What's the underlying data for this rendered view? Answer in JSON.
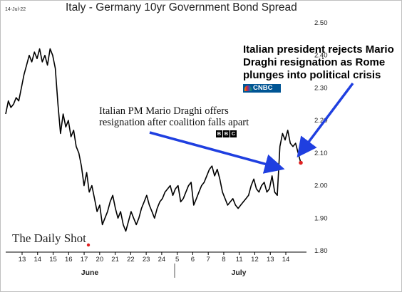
{
  "date_label": "14-Jul-22",
  "title": "Italy - Germany 10yr Government Bond Spread",
  "annotations": {
    "bbc_text": "Italian PM Mario Draghi offers resignation after coalition falls apart",
    "bbc_logo": [
      "B",
      "B",
      "C"
    ],
    "cnbc_text": "Italian president rejects Mario Draghi resignation as Rome plunges into political crisis",
    "cnbc_logo": "CNBC"
  },
  "source": "The Daily Shot",
  "colors": {
    "line": "#000000",
    "arrow": "#1f3fe0",
    "end_point": "#e02020",
    "axis": "#000000"
  },
  "chart_data": {
    "type": "line",
    "title": "Italy - Germany 10yr Government Bond Spread",
    "y_unit": "percentage points",
    "ylim": [
      1.8,
      2.5
    ],
    "y_ticks": [
      "2.50",
      "2.40",
      "2.30",
      "2.20",
      "2.10",
      "2.00",
      "1.90",
      "1.80"
    ],
    "x_ticks": [
      "13",
      "14",
      "15",
      "16",
      "17",
      "20",
      "21",
      "22",
      "23",
      "24",
      "5",
      "6",
      "7",
      "8",
      "11",
      "12",
      "13",
      "14"
    ],
    "x_month_labels": [
      "June",
      "July"
    ],
    "series": [
      {
        "values": [
          2.22,
          2.26,
          2.24,
          2.25,
          2.27,
          2.26,
          2.3,
          2.34,
          2.37,
          2.4,
          2.38,
          2.41,
          2.39,
          2.42,
          2.38,
          2.4,
          2.37,
          2.42,
          2.4,
          2.36,
          2.25,
          2.16,
          2.22,
          2.18,
          2.2,
          2.15,
          2.17,
          2.12,
          2.1,
          2.06,
          2.0,
          2.04,
          1.98,
          2.0,
          1.96,
          1.92,
          1.94,
          1.88,
          1.9,
          1.92,
          1.95,
          1.97,
          1.93,
          1.9,
          1.92,
          1.88,
          1.86,
          1.89,
          1.92,
          1.9,
          1.88,
          1.9,
          1.93,
          1.95,
          1.97,
          1.94,
          1.92,
          1.9,
          1.93,
          1.95,
          1.96,
          1.98,
          1.99,
          2.0,
          1.97,
          1.99,
          2.0,
          1.95,
          1.96,
          1.98,
          2.0,
          2.01,
          1.94,
          1.96,
          1.98,
          2.0,
          2.01,
          2.03,
          2.05,
          2.06,
          2.03,
          2.05,
          2.02,
          1.98,
          1.96,
          1.94,
          1.95,
          1.96,
          1.94,
          1.93,
          1.94,
          1.95,
          1.96,
          1.97,
          2.0,
          2.02,
          1.99,
          1.98,
          2.0,
          2.01,
          1.98,
          1.99,
          2.03,
          1.98,
          1.97,
          2.12,
          2.16,
          2.14,
          2.17,
          2.13,
          2.12,
          2.13,
          2.1,
          2.07
        ]
      }
    ]
  }
}
